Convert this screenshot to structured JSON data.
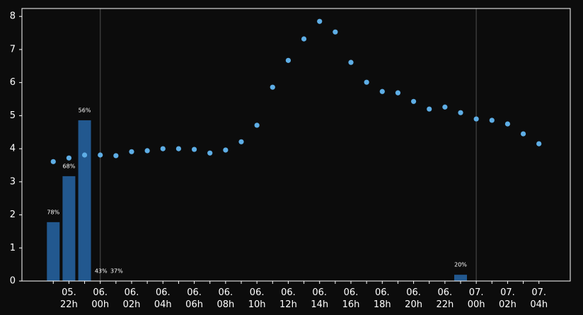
{
  "chart_data": {
    "type": "bar+scatter",
    "categories": [
      null,
      "05.\n22h",
      null,
      "06.\n00h",
      null,
      "06.\n02h",
      null,
      "06.\n04h",
      null,
      "06.\n06h",
      null,
      "06.\n08h",
      null,
      "06.\n10h",
      null,
      "06.\n12h",
      null,
      "06.\n14h",
      null,
      "06.\n16h",
      null,
      "06.\n18h",
      null,
      "06.\n20h",
      null,
      "06.\n22h",
      null,
      "07.\n00h",
      null,
      "07.\n02h",
      null,
      "07.\n04h"
    ],
    "series": [
      {
        "type": "bar",
        "color": "#22588f",
        "values": [
          1.78,
          3.17,
          4.86,
          0,
          0,
          null,
          null,
          null,
          null,
          null,
          null,
          null,
          null,
          null,
          null,
          null,
          null,
          null,
          null,
          null,
          null,
          null,
          null,
          null,
          null,
          null,
          0.19,
          null,
          null,
          null,
          null,
          null
        ],
        "annotations": [
          "78%",
          "68%",
          "56%",
          "43%",
          "37%",
          null,
          null,
          null,
          null,
          null,
          null,
          null,
          null,
          null,
          null,
          null,
          null,
          null,
          null,
          null,
          null,
          null,
          null,
          null,
          null,
          null,
          "20%",
          null,
          null,
          null,
          null,
          null
        ]
      },
      {
        "type": "scatter",
        "color": "#5eaee6",
        "values": [
          3.61,
          3.72,
          3.81,
          3.81,
          3.79,
          3.91,
          3.94,
          4.0,
          4.0,
          3.98,
          3.87,
          3.96,
          4.21,
          4.71,
          5.86,
          6.67,
          7.32,
          7.85,
          7.53,
          6.61,
          6.01,
          5.73,
          5.69,
          5.43,
          5.2,
          5.26,
          5.09,
          4.9,
          4.86,
          4.75,
          4.45,
          4.15
        ]
      }
    ],
    "ylim": [
      0,
      8.24
    ],
    "yticks": [
      0,
      1,
      2,
      3,
      4,
      5,
      6,
      7,
      8
    ]
  }
}
